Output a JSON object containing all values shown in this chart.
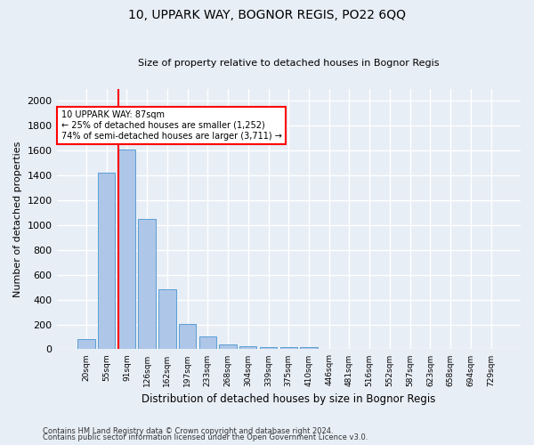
{
  "title": "10, UPPARK WAY, BOGNOR REGIS, PO22 6QQ",
  "subtitle": "Size of property relative to detached houses in Bognor Regis",
  "xlabel": "Distribution of detached houses by size in Bognor Regis",
  "ylabel": "Number of detached properties",
  "footnote1": "Contains HM Land Registry data © Crown copyright and database right 2024.",
  "footnote2": "Contains public sector information licensed under the Open Government Licence v3.0.",
  "bar_labels": [
    "20sqm",
    "55sqm",
    "91sqm",
    "126sqm",
    "162sqm",
    "197sqm",
    "233sqm",
    "268sqm",
    "304sqm",
    "339sqm",
    "375sqm",
    "410sqm",
    "446sqm",
    "481sqm",
    "516sqm",
    "552sqm",
    "587sqm",
    "623sqm",
    "658sqm",
    "694sqm",
    "729sqm"
  ],
  "bar_values": [
    85,
    1420,
    1610,
    1050,
    480,
    205,
    105,
    40,
    28,
    20,
    18,
    15,
    0,
    0,
    0,
    0,
    0,
    0,
    0,
    0,
    0
  ],
  "bar_color": "#aec6e8",
  "bar_edge_color": "#5a9fd4",
  "bg_color": "#e8eef6",
  "grid_color": "#ffffff",
  "vline_color": "red",
  "annotation_title": "10 UPPARK WAY: 87sqm",
  "annotation_line1": "← 25% of detached houses are smaller (1,252)",
  "annotation_line2": "74% of semi-detached houses are larger (3,711) →",
  "annotation_box_color": "white",
  "annotation_box_edge": "red",
  "ylim": [
    0,
    2100
  ],
  "yticks": [
    0,
    200,
    400,
    600,
    800,
    1000,
    1200,
    1400,
    1600,
    1800,
    2000
  ]
}
